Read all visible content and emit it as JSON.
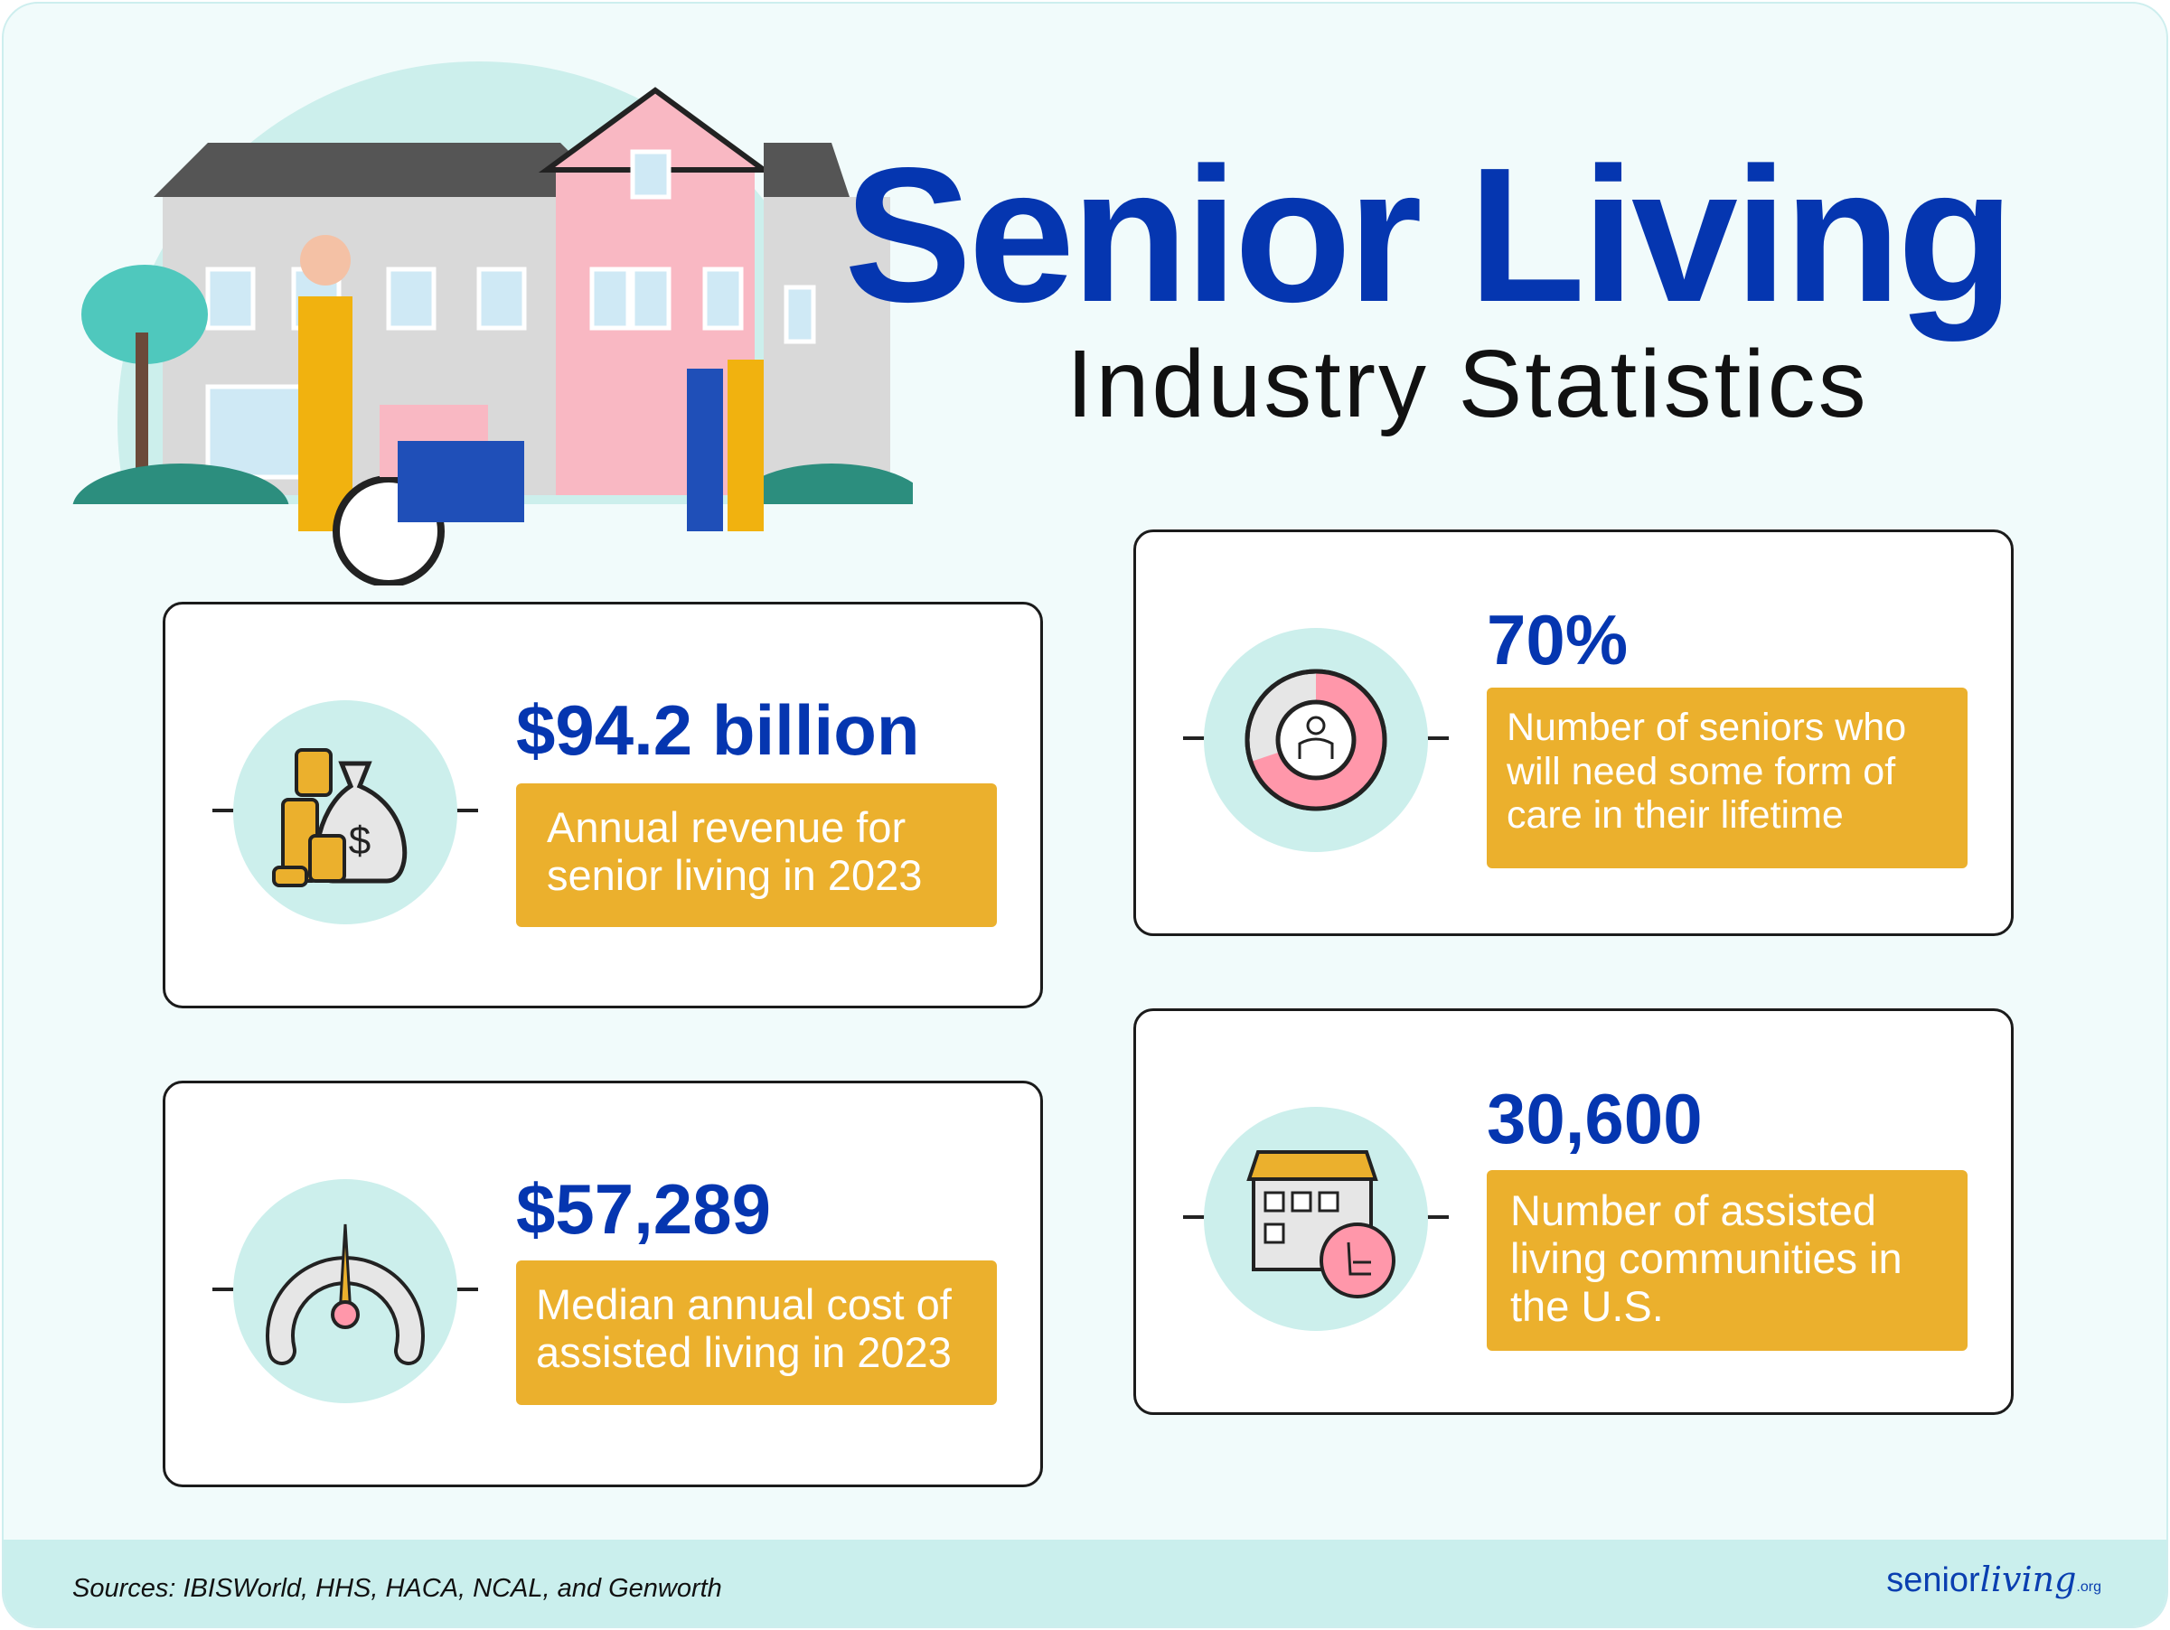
{
  "title": "Senior Living",
  "subtitle": "Industry Statistics",
  "stats": [
    {
      "value": "$94.2 billion",
      "description": "Annual revenue for senior living in 2023",
      "icon": "money-bag-coins-icon"
    },
    {
      "value": "70%",
      "description": "Number of seniors who will need some form of care in their lifetime",
      "icon": "donut-senior-icon",
      "fill_percent": 70
    },
    {
      "value": "$57,289",
      "description": "Median annual cost of assisted living in 2023",
      "icon": "gauge-icon"
    },
    {
      "value": "30,600",
      "description": "Number of assisted living communities in the U.S.",
      "icon": "building-rocking-chair-icon"
    }
  ],
  "footer": {
    "sources": "Sources: IBISWorld, HHS, HACA, NCAL, and Genworth",
    "logo_main": "senior",
    "logo_script": "living",
    "logo_tld": ".org"
  },
  "colors": {
    "blue": "#0536b0",
    "gold": "#ebb02d",
    "teal": "#ccefec",
    "pink": "#ff97aa"
  }
}
